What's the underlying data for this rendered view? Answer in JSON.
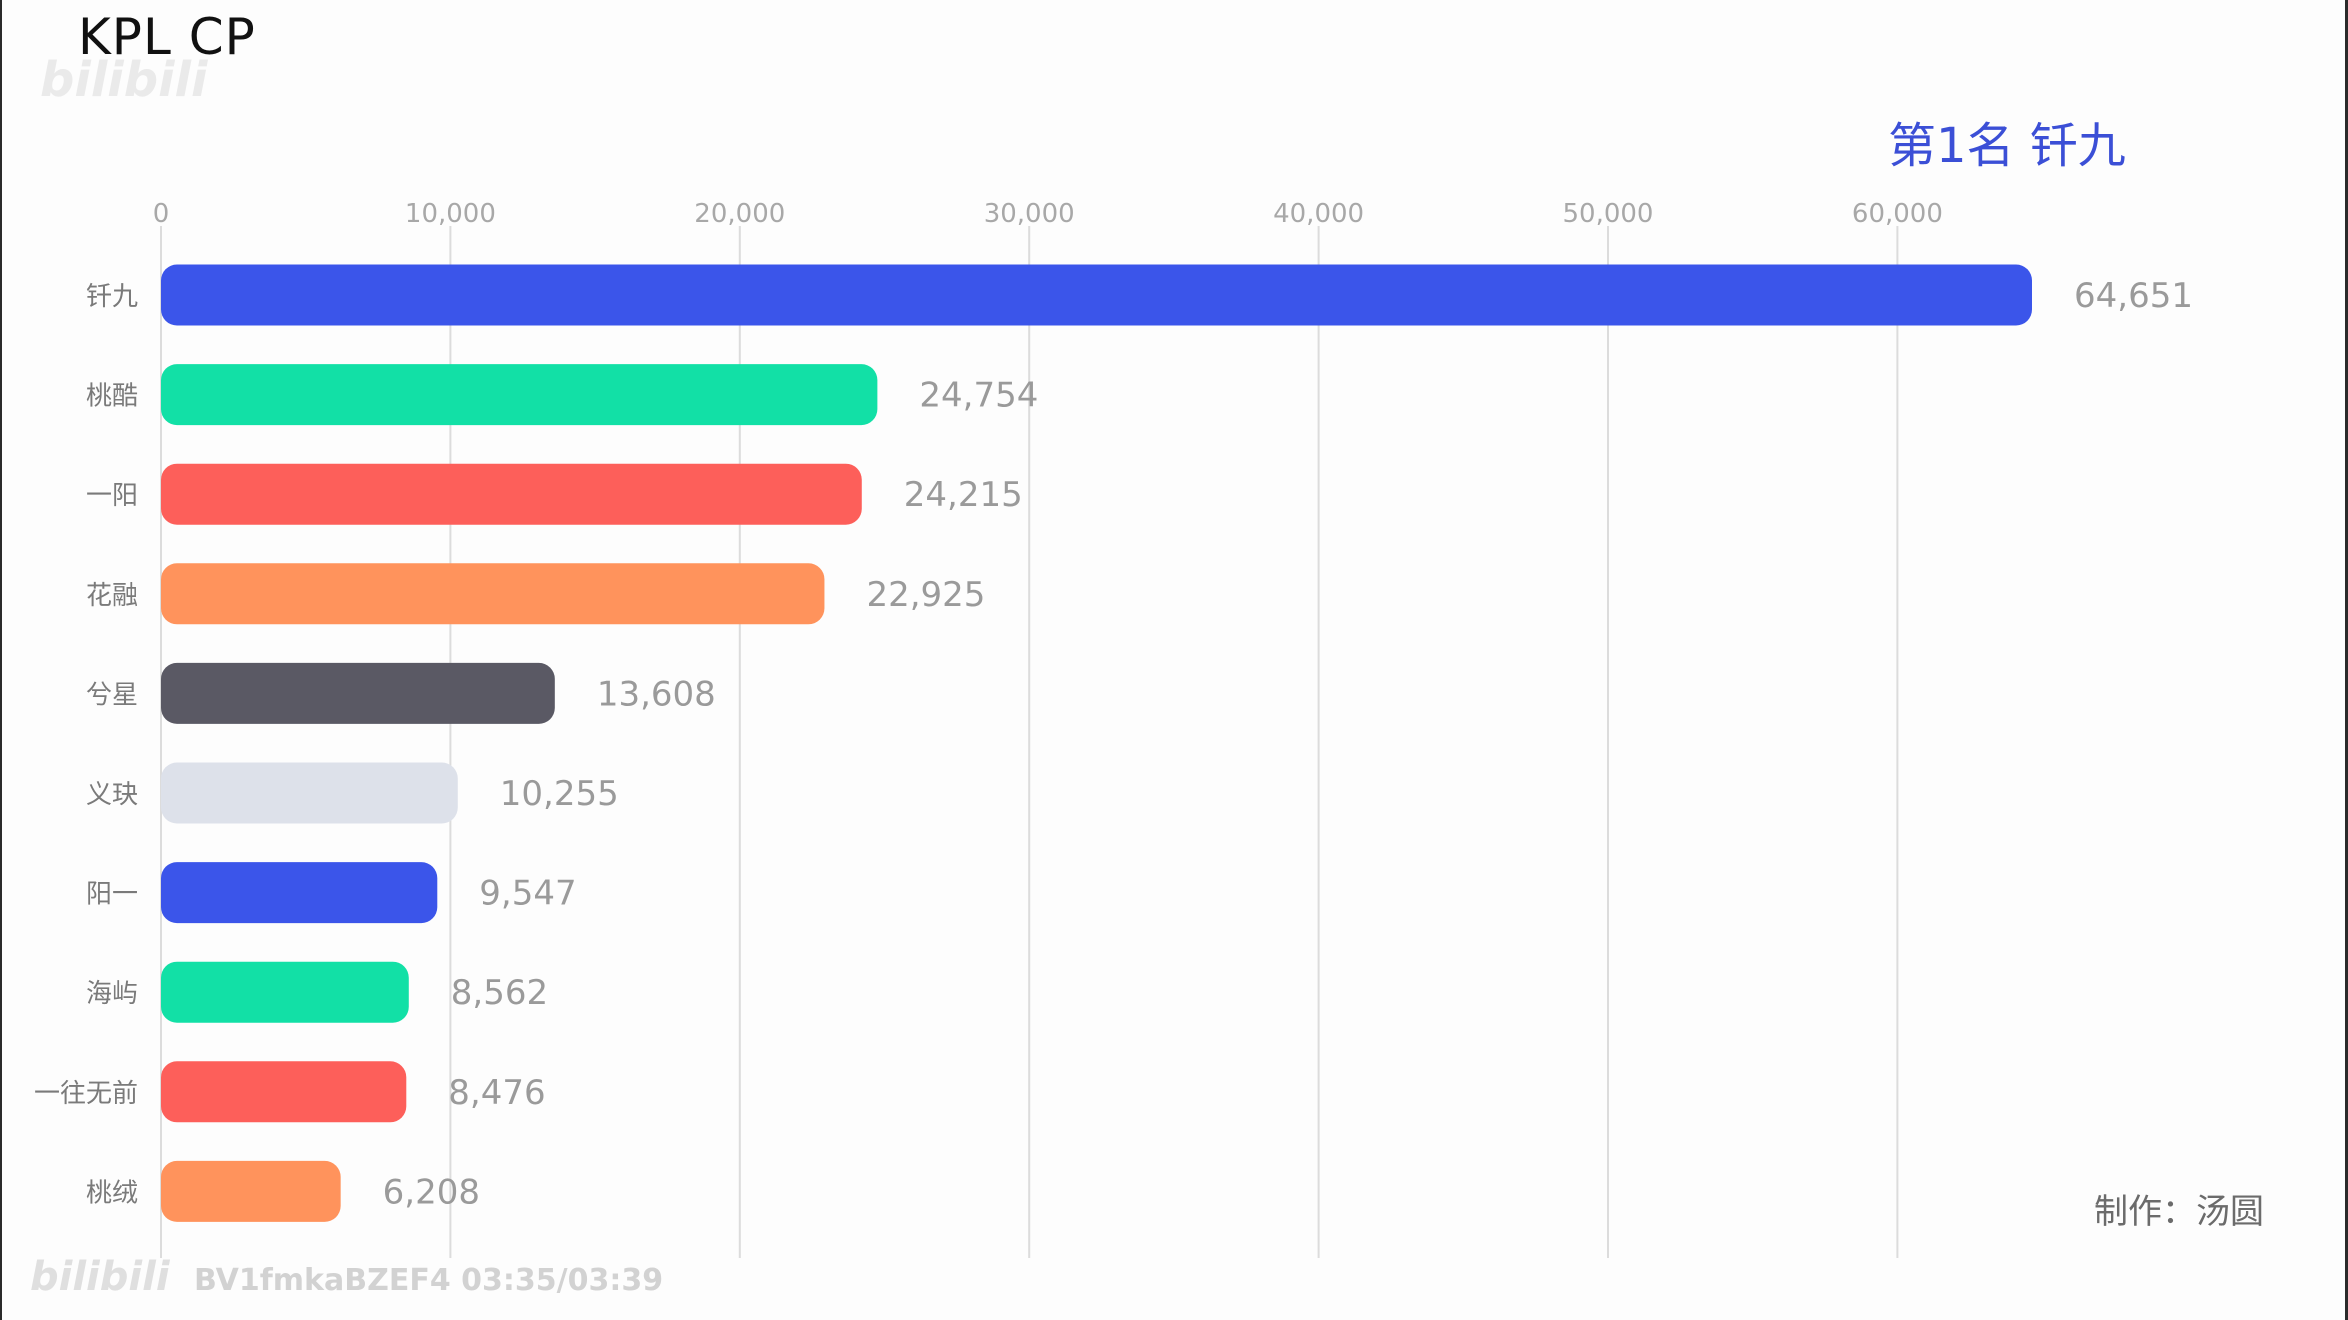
{
  "title": "KPL CP",
  "watermark_top": "bilibili",
  "rank_label": "第1名 钎九",
  "credit": "制作：汤圆",
  "watermark_bottom": {
    "logo": "bilibili",
    "text": "BV1fmkaBZEF4 03:35/03:39"
  },
  "colors": {
    "blue": "#3b55ea",
    "green": "#12e0a6",
    "red": "#fd5f5a",
    "orange": "#ff935c",
    "dark": "#5a5964",
    "lightgray": "#dde1ea",
    "accent": "#3b4fd6"
  },
  "chart_data": {
    "type": "bar",
    "orientation": "horizontal",
    "categories": [
      "钎九",
      "桃酷",
      "一阳",
      "花融",
      "兮星",
      "义玦",
      "阳一",
      "海屿",
      "一往无前",
      "桃绒"
    ],
    "values": [
      64651,
      24754,
      24215,
      22925,
      13608,
      10255,
      9547,
      8562,
      8476,
      6208
    ],
    "value_labels": [
      "64,651",
      "24,754",
      "24,215",
      "22,925",
      "13,608",
      "10,255",
      "9,547",
      "8,562",
      "8,476",
      "6,208"
    ],
    "bar_colors": [
      "#3b55ea",
      "#12e0a6",
      "#fd5f5a",
      "#ff935c",
      "#5a5964",
      "#dde1ea",
      "#3b55ea",
      "#12e0a6",
      "#fd5f5a",
      "#ff935c"
    ],
    "x_ticks": [
      0,
      10000,
      20000,
      30000,
      40000,
      50000,
      60000
    ],
    "x_tick_labels": [
      "0",
      "10,000",
      "20,000",
      "30,000",
      "40,000",
      "50,000",
      "60,000"
    ],
    "xlim": [
      0,
      64651
    ],
    "axis_position": "top",
    "grid": true
  }
}
